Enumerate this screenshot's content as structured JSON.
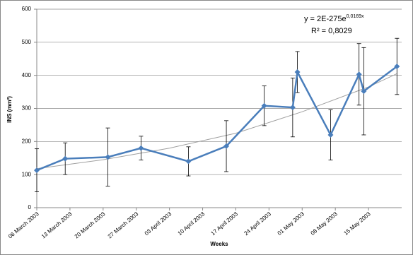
{
  "chart_data": {
    "type": "line",
    "x_label": "Weeks",
    "y_label": "INS (mm²)",
    "equation": "y = 2E-275e",
    "equation_exponent": "0,0169x",
    "r_squared": "R² = 0,8029",
    "x": [
      "2003-03-06",
      "2003-03-12",
      "2003-03-21",
      "2003-03-28",
      "2003-04-07",
      "2003-04-15",
      "2003-04-23",
      "2003-04-29",
      "2003-04-30",
      "2003-05-07",
      "2003-05-13",
      "2003-05-14",
      "2003-05-21"
    ],
    "series": [
      {
        "name": "INS",
        "color": "#4a7ebb",
        "values": [
          113,
          148,
          153,
          180,
          140,
          186,
          308,
          303,
          410,
          220,
          403,
          352,
          427
        ],
        "errors": [
          65,
          48,
          88,
          36,
          44,
          77,
          60,
          89,
          62,
          76,
          93,
          132,
          85
        ]
      }
    ],
    "trendline": {
      "color": "#a0a0a0",
      "x": [
        "2003-03-06",
        "2003-03-20",
        "2003-04-03",
        "2003-04-17",
        "2003-05-01",
        "2003-05-15",
        "2003-05-21"
      ],
      "values": [
        118,
        145,
        180,
        225,
        290,
        365,
        405
      ]
    },
    "xlim": [
      "2003-03-06",
      "2003-05-22"
    ],
    "xticks": [
      {
        "value": "2003-03-06",
        "label": "06 March 2003"
      },
      {
        "value": "2003-03-13",
        "label": "13 March 2003"
      },
      {
        "value": "2003-03-20",
        "label": "20 March 2003"
      },
      {
        "value": "2003-03-27",
        "label": "27 March 2003"
      },
      {
        "value": "2003-04-03",
        "label": "03 April 2003"
      },
      {
        "value": "2003-04-10",
        "label": "10 April 2003"
      },
      {
        "value": "2003-04-17",
        "label": "17 April 2003"
      },
      {
        "value": "2003-04-24",
        "label": "24 April 2003"
      },
      {
        "value": "2003-05-01",
        "label": "01 May 2003"
      },
      {
        "value": "2003-05-08",
        "label": "08 May 2003"
      },
      {
        "value": "2003-05-15",
        "label": "15 May 2003"
      }
    ],
    "ylim": [
      0,
      600
    ],
    "yticks": [
      0,
      100,
      200,
      300,
      400,
      500,
      600
    ],
    "grid": true
  }
}
